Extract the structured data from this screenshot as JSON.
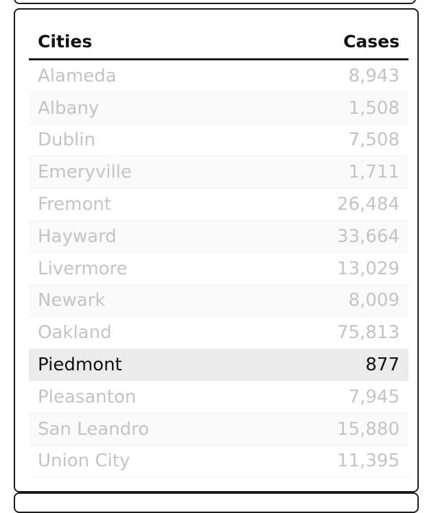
{
  "table": {
    "headers": {
      "city": "Cities",
      "cases": "Cases"
    },
    "rows": [
      {
        "city": "Alameda",
        "cases": "8,943"
      },
      {
        "city": "Albany",
        "cases": "1,508"
      },
      {
        "city": "Dublin",
        "cases": "7,508"
      },
      {
        "city": "Emeryville",
        "cases": "1,711"
      },
      {
        "city": "Fremont",
        "cases": "26,484"
      },
      {
        "city": "Hayward",
        "cases": "33,664"
      },
      {
        "city": "Livermore",
        "cases": "13,029"
      },
      {
        "city": "Newark",
        "cases": "8,009"
      },
      {
        "city": "Oakland",
        "cases": "75,813"
      },
      {
        "city": "Piedmont",
        "cases": "877",
        "selected": true
      },
      {
        "city": "Pleasanton",
        "cases": "7,945"
      },
      {
        "city": "San Leandro",
        "cases": "15,880"
      },
      {
        "city": "Union City",
        "cases": "11,395"
      }
    ]
  },
  "colors": {
    "header_text": "#111111",
    "dimmed_text": "#c4c4c4",
    "selected_row_bg": "#ebebeb",
    "selected_text": "#111111"
  }
}
